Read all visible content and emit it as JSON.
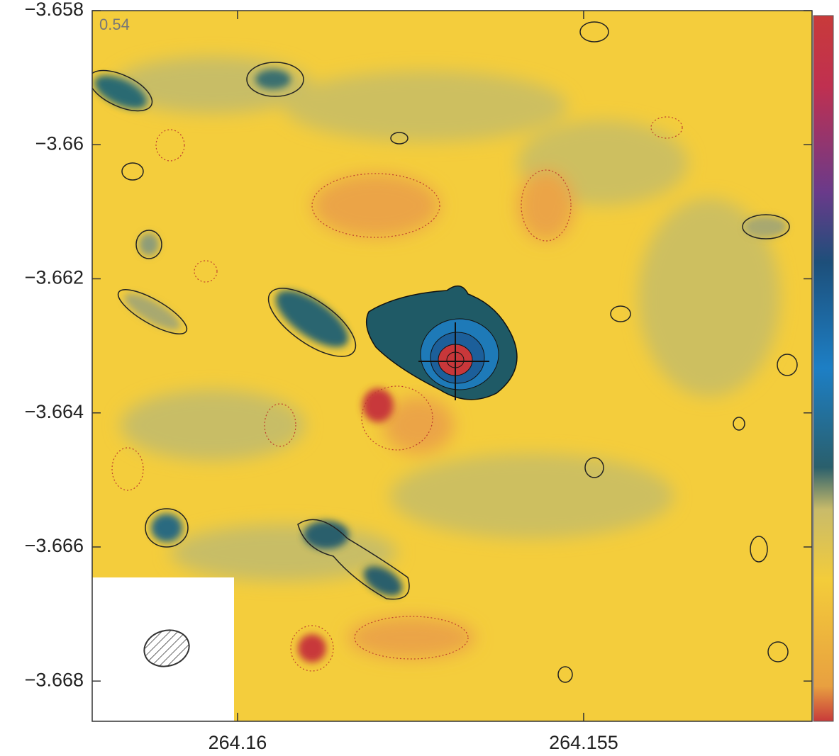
{
  "chart_data": {
    "type": "contour",
    "annotation": "0.54",
    "xlim": [
      264.1621,
      264.1517
    ],
    "ylim": [
      -3.6686,
      -3.658
    ],
    "xticks": [
      264.16,
      264.155
    ],
    "yticks": [
      {
        "value": -3.658,
        "label": "−3.658"
      },
      {
        "value": -3.66,
        "label": "−3.66"
      },
      {
        "value": -3.662,
        "label": "−3.662"
      },
      {
        "value": -3.664,
        "label": "−3.664"
      },
      {
        "value": -3.666,
        "label": "−3.666"
      },
      {
        "value": -3.668,
        "label": "−3.668"
      }
    ]
  }
}
